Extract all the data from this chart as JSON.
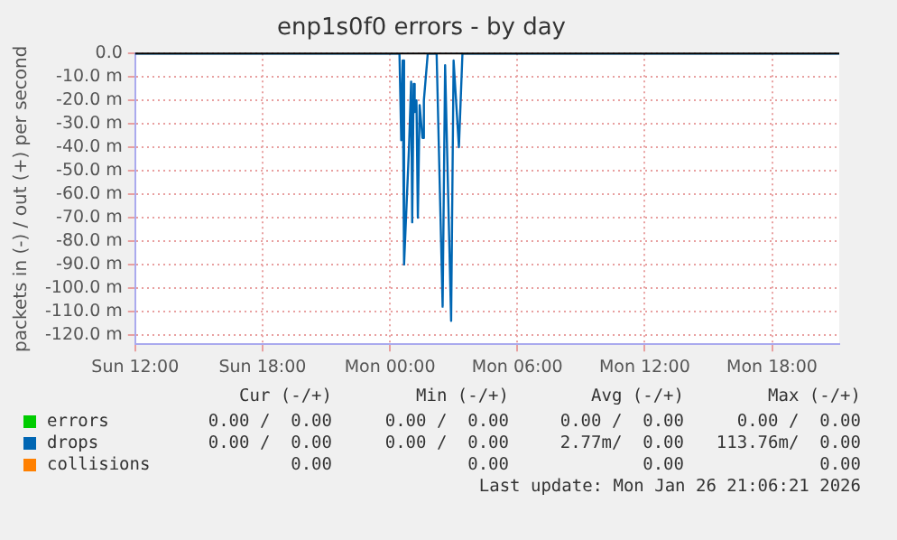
{
  "chart_data": {
    "type": "line",
    "title": "enp1s0f0 errors - by day",
    "ylabel": "packets in (-) / out (+) per second",
    "xlim": [
      "2026-01-25T12:00",
      "2026-01-26T21:10"
    ],
    "xticks": [
      {
        "value": "2026-01-25T12:00",
        "label": "Sun 12:00"
      },
      {
        "value": "2026-01-25T18:00",
        "label": "Sun 18:00"
      },
      {
        "value": "2026-01-26T00:00",
        "label": "Mon 00:00"
      },
      {
        "value": "2026-01-26T06:00",
        "label": "Mon 06:00"
      },
      {
        "value": "2026-01-26T12:00",
        "label": "Mon 12:00"
      },
      {
        "value": "2026-01-26T18:00",
        "label": "Mon 18:00"
      }
    ],
    "ylim": [
      -124,
      0
    ],
    "yticks": [
      {
        "value": 0,
        "label": "0.0"
      },
      {
        "value": -10,
        "label": "-10.0 m"
      },
      {
        "value": -20,
        "label": "-20.0 m"
      },
      {
        "value": -30,
        "label": "-30.0 m"
      },
      {
        "value": -40,
        "label": "-40.0 m"
      },
      {
        "value": -50,
        "label": "-50.0 m"
      },
      {
        "value": -60,
        "label": "-60.0 m"
      },
      {
        "value": -70,
        "label": "-70.0 m"
      },
      {
        "value": -80,
        "label": "-80.0 m"
      },
      {
        "value": -90,
        "label": "-90.0 m"
      },
      {
        "value": -100,
        "label": "-100.0 m"
      },
      {
        "value": -110,
        "label": "-110.0 m"
      },
      {
        "value": -120,
        "label": "-120.0 m"
      }
    ],
    "grid": true,
    "legend": "bottom",
    "marker": "none",
    "series": [
      {
        "name": "errors",
        "color": "#00cc00"
      },
      {
        "name": "drops",
        "color": "#0066b3",
        "x": [
          "2026-01-25T12:00",
          "2026-01-26T00:27",
          "2026-01-26T00:32",
          "2026-01-26T00:36",
          "2026-01-26T00:40",
          "2026-01-26T00:54",
          "2026-01-26T01:00",
          "2026-01-26T01:03",
          "2026-01-26T01:07",
          "2026-01-26T01:10",
          "2026-01-26T01:15",
          "2026-01-26T01:19",
          "2026-01-26T01:24",
          "2026-01-26T01:32",
          "2026-01-26T01:36",
          "2026-01-26T01:47",
          "2026-01-26T02:12",
          "2026-01-26T02:29",
          "2026-01-26T02:36",
          "2026-01-26T02:53",
          "2026-01-26T03:00",
          "2026-01-26T03:15",
          "2026-01-26T03:25",
          "2026-01-26T21:10"
        ],
        "values": [
          0,
          0,
          -37,
          -3,
          -90,
          -40,
          -12,
          -72,
          -13,
          -25,
          -20,
          -70,
          -22,
          -36,
          -20,
          0,
          0,
          -108,
          -5,
          -114,
          -3,
          -40,
          0,
          0
        ]
      },
      {
        "name": "collisions",
        "color": "#ff8000"
      }
    ],
    "annotations": [
      "Cur (-/+)",
      "Min (-/+)",
      "Avg (-/+)",
      "Max (-/+)",
      "0.00 /  0.00",
      "0.00 /  0.00",
      "0.00 /  0.00",
      "0.00 /  0.00",
      "0.00 /  0.00",
      "0.00 /  0.00",
      "2.77m/  0.00",
      "113.76m/  0.00",
      "0.00",
      "0.00",
      "0.00",
      "0.00",
      "Last update: Mon Jan 26 21:06:21 2026"
    ]
  }
}
